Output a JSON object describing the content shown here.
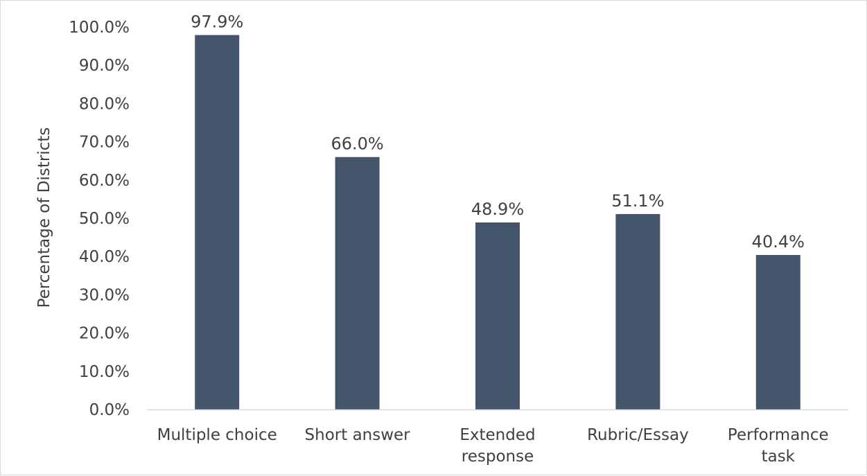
{
  "chart_data": {
    "type": "bar",
    "categories": [
      [
        "Multiple choice"
      ],
      [
        "Short answer"
      ],
      [
        "Extended",
        "response"
      ],
      [
        "Rubric/Essay"
      ],
      [
        "Performance",
        "task"
      ]
    ],
    "values": [
      97.9,
      66.0,
      48.9,
      51.1,
      40.4
    ],
    "data_labels": [
      "97.9%",
      "66.0%",
      "48.9%",
      "51.1%",
      "40.4%"
    ],
    "y_ticks": [
      "0.0%",
      "10.0%",
      "20.0%",
      "30.0%",
      "40.0%",
      "50.0%",
      "60.0%",
      "70.0%",
      "80.0%",
      "90.0%",
      "100.0%"
    ],
    "ylim": [
      0,
      100
    ],
    "ylabel": "Percentage of Districts",
    "xlabel": "",
    "title": "",
    "grid": false,
    "legend": "none",
    "bar_color": "#44546a",
    "axis_color": "#d9d9d9",
    "text_color": "#404040"
  }
}
